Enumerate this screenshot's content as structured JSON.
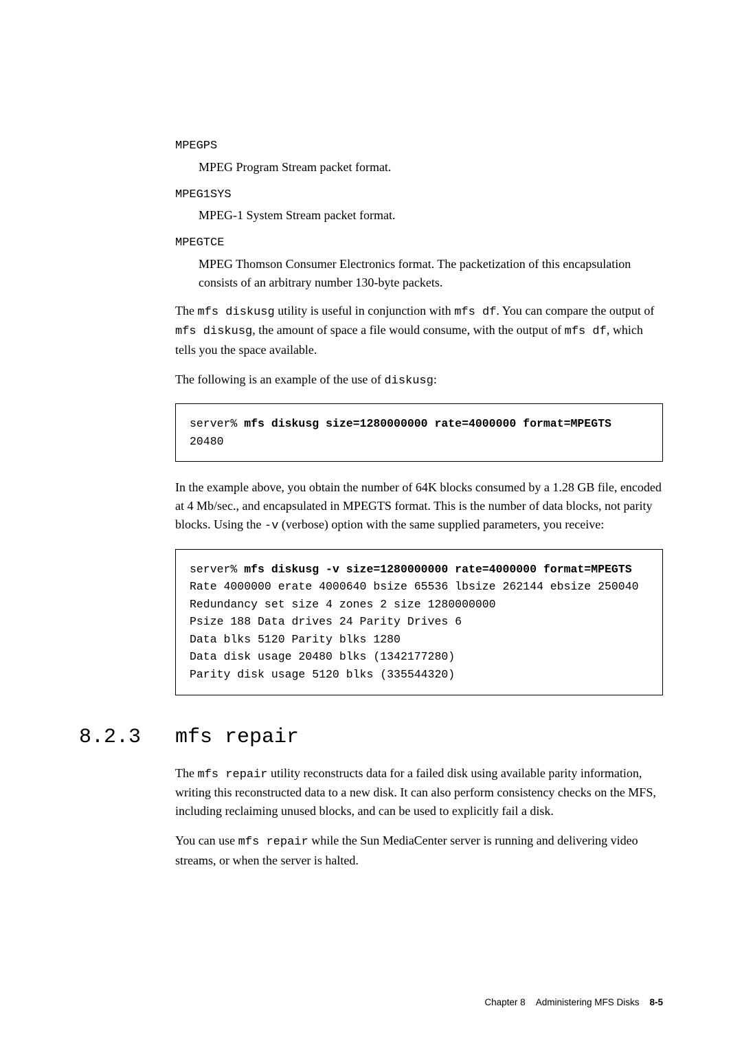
{
  "dl": {
    "t1": "MPEGPS",
    "d1": "MPEG Program Stream packet format.",
    "t2": "MPEG1SYS",
    "d2": "MPEG-1 System Stream packet format.",
    "t3": "MPEGTCE",
    "d3": "MPEG Thomson Consumer Electronics format. The packetization of this encapsulation consists of an arbitrary number 130-byte packets."
  },
  "p1a": "The ",
  "p1m1": "mfs diskusg",
  "p1b": " utility is useful in conjunction with ",
  "p1m2": "mfs df",
  "p1c": ". You can compare the output of ",
  "p1m3": "mfs diskusg",
  "p1d": ", the amount of space a file would consume, with the output of ",
  "p1m4": "mfs df",
  "p1e": ", which tells you the space available.",
  "p2a": "The following is an example of the use of ",
  "p2m1": "diskusg",
  "p2b": ":",
  "code1": {
    "prompt": "server% ",
    "cmd": "mfs diskusg size=1280000000 rate=4000000 format=MPEGTS",
    "out": "20480"
  },
  "p3a": "In the example above, you obtain the number of 64K blocks consumed by a 1.28 GB file, encoded at 4 Mb/sec., and encapsulated in MPEGTS format. This is the number of data blocks, not parity blocks. Using the ",
  "p3m1": "-v",
  "p3b": " (verbose) option with the same supplied parameters, you receive:",
  "code2": {
    "prompt": "server% ",
    "cmd": "mfs diskusg -v size=1280000000 rate=4000000 format=MPEGTS",
    "l1": "Rate 4000000 erate 4000640 bsize 65536 lbsize 262144 ebsize 250040",
    "l2": "Redundancy set size 4 zones 2 size 1280000000",
    "l3": "Psize 188 Data drives 24 Parity Drives 6",
    "l4": "Data blks 5120 Parity blks 1280",
    "l5": "Data disk usage 20480 blks (1342177280)",
    "l6": "Parity disk usage 5120 blks (335544320)"
  },
  "sec": {
    "num": "8.2.3",
    "title": "mfs repair"
  },
  "p4a": "The ",
  "p4m1": "mfs repair",
  "p4b": " utility reconstructs data for a failed disk using available parity information, writing this reconstructed data to a new disk. It can also perform consistency checks on the MFS, including reclaiming unused blocks, and can be used to explicitly fail a disk.",
  "p5a": "You can use ",
  "p5m1": "mfs repair",
  "p5b": " while the Sun MediaCenter server is running and delivering video streams, or when the server is halted.",
  "footer": {
    "chap": "Chapter 8",
    "title": "Administering MFS Disks",
    "page": "8-5"
  }
}
